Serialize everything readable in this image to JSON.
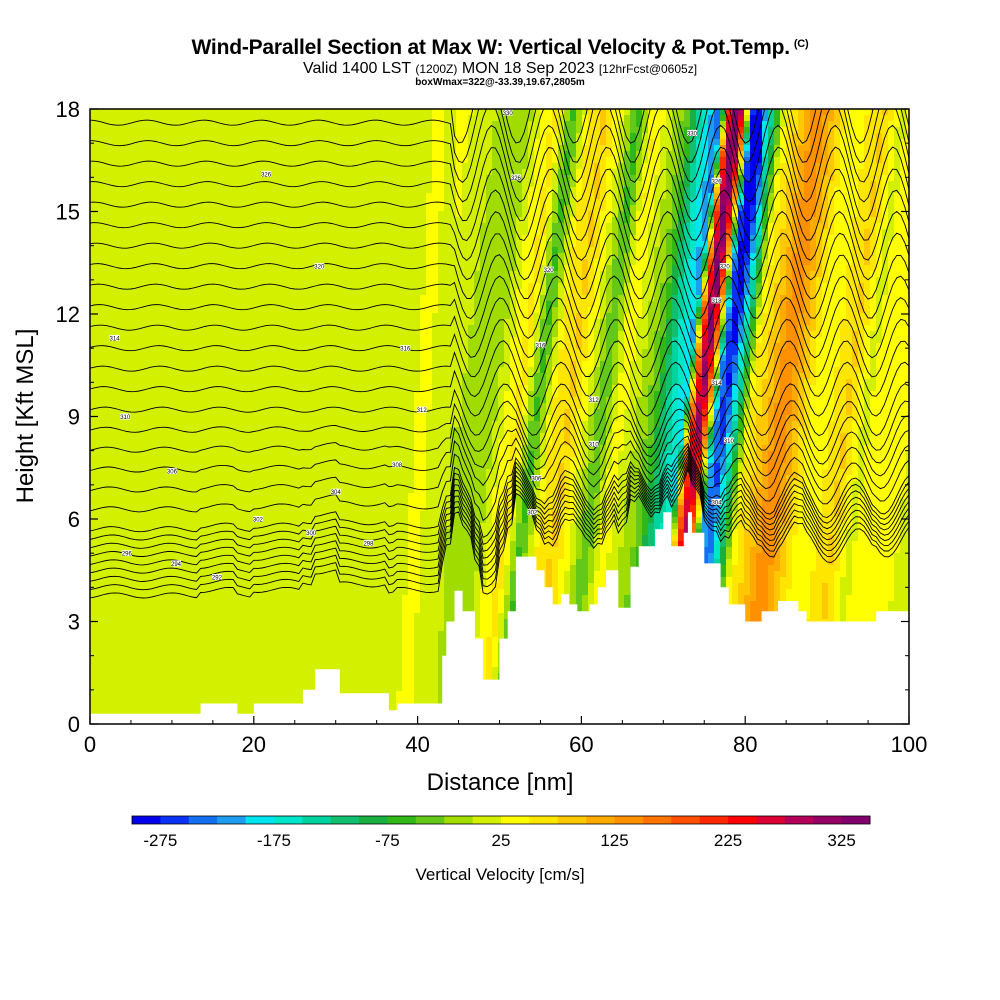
{
  "title": {
    "main": "Wind-Parallel Section at Max W: Vertical Velocity & Pot.Temp.",
    "copyright": "(C)",
    "valid_prefix": "Valid 1400 LST",
    "valid_utc": "(1200Z)",
    "valid_date": "MON 18 Sep 2023",
    "forecast": "[12hrFcst@0605z]",
    "box": "boxWmax=322@-33.39,19.67,2805m"
  },
  "chart_data": {
    "type": "heatmap",
    "xlabel": "Distance [nm]",
    "ylabel": "Height [Kft MSL]",
    "xlim": [
      0,
      100
    ],
    "ylim": [
      0,
      18
    ],
    "x_ticks": [
      "0",
      "20",
      "40",
      "60",
      "80",
      "100"
    ],
    "y_ticks": [
      "0",
      "3",
      "6",
      "9",
      "12",
      "15",
      "18"
    ],
    "field": "Vertical Velocity",
    "contour_field": "Potential Temperature",
    "colorbar": {
      "title": "Vertical Velocity [cm/s]",
      "tick_labels": [
        "-275",
        "-175",
        "-75",
        "25",
        "125",
        "225",
        "325"
      ],
      "tick_values": [
        -275,
        -175,
        -75,
        25,
        125,
        225,
        325
      ],
      "levels": [
        -300,
        -275,
        -250,
        -225,
        -200,
        -175,
        -150,
        -125,
        -100,
        -75,
        -50,
        -25,
        0,
        25,
        50,
        75,
        100,
        125,
        150,
        175,
        200,
        225,
        250,
        275,
        300,
        325,
        350
      ],
      "colors": [
        "#0000ee",
        "#0a32f5",
        "#1470f0",
        "#1e9cf0",
        "#00e6f0",
        "#00e6c8",
        "#00d2a0",
        "#10c070",
        "#18b040",
        "#30b818",
        "#64c818",
        "#a0dc00",
        "#d2f000",
        "#ffff00",
        "#ffe600",
        "#ffc800",
        "#ffaa00",
        "#ff9100",
        "#ff7300",
        "#ff5000",
        "#ff2800",
        "#ff0000",
        "#dc0032",
        "#b4005a",
        "#960064",
        "#82006e"
      ]
    },
    "bands": [
      {
        "x": 0,
        "w": 0
      },
      {
        "x": 3,
        "w": 15
      },
      {
        "x": 8,
        "w": 5
      },
      {
        "x": 11,
        "w": 20
      },
      {
        "x": 14,
        "w": 25
      },
      {
        "x": 18,
        "w": 10
      },
      {
        "x": 22,
        "w": 20
      },
      {
        "x": 27,
        "w": 10
      },
      {
        "x": 31,
        "w": 25
      },
      {
        "x": 36,
        "w": 10
      },
      {
        "x": 40,
        "w": 30
      },
      {
        "x": 43,
        "w": 5
      },
      {
        "x": 47,
        "w": -25
      },
      {
        "x": 49,
        "w": 25
      },
      {
        "x": 51,
        "w": 60
      },
      {
        "x": 53,
        "w": -60
      },
      {
        "x": 55,
        "w": 50
      },
      {
        "x": 57,
        "w": 80
      },
      {
        "x": 59,
        "w": 25
      },
      {
        "x": 61,
        "w": -50
      },
      {
        "x": 63,
        "w": 40
      },
      {
        "x": 65,
        "w": 5
      },
      {
        "x": 67,
        "w": -30
      },
      {
        "x": 69,
        "w": -120
      },
      {
        "x": 71,
        "w": -180
      },
      {
        "x": 72,
        "w": 150
      },
      {
        "x": 73,
        "w": 300
      },
      {
        "x": 74,
        "w": 120
      },
      {
        "x": 75,
        "w": -200
      },
      {
        "x": 76,
        "w": -250
      },
      {
        "x": 77.5,
        "w": -120
      },
      {
        "x": 79,
        "w": 40
      },
      {
        "x": 81,
        "w": 90
      },
      {
        "x": 83,
        "w": 150
      },
      {
        "x": 85,
        "w": 90
      },
      {
        "x": 87,
        "w": 30
      },
      {
        "x": 89,
        "w": 50
      },
      {
        "x": 91,
        "w": 80
      },
      {
        "x": 93,
        "w": 20
      },
      {
        "x": 96,
        "w": 40
      },
      {
        "x": 100,
        "w": 20
      }
    ],
    "terrain": [
      {
        "x": 0,
        "h": 0.3
      },
      {
        "x": 13.5,
        "h": 0.3
      },
      {
        "x": 13.5,
        "h": 0.6
      },
      {
        "x": 18,
        "h": 0.6
      },
      {
        "x": 18,
        "h": 0.3
      },
      {
        "x": 20,
        "h": 0.3
      },
      {
        "x": 20,
        "h": 0.6
      },
      {
        "x": 26,
        "h": 0.6
      },
      {
        "x": 26,
        "h": 1.0
      },
      {
        "x": 27.5,
        "h": 1.0
      },
      {
        "x": 27.5,
        "h": 1.6
      },
      {
        "x": 30.5,
        "h": 1.6
      },
      {
        "x": 30.5,
        "h": 0.9
      },
      {
        "x": 36.5,
        "h": 0.9
      },
      {
        "x": 36.5,
        "h": 0.4
      },
      {
        "x": 37.5,
        "h": 0.4
      },
      {
        "x": 37.5,
        "h": 0.6
      },
      {
        "x": 43,
        "h": 0.6
      },
      {
        "x": 43,
        "h": 2.0
      },
      {
        "x": 43.5,
        "h": 2.0
      },
      {
        "x": 43.5,
        "h": 3.0
      },
      {
        "x": 44.5,
        "h": 3.0
      },
      {
        "x": 44.5,
        "h": 3.9
      },
      {
        "x": 45.5,
        "h": 3.9
      },
      {
        "x": 45.5,
        "h": 3.3
      },
      {
        "x": 47,
        "h": 3.3
      },
      {
        "x": 47,
        "h": 2.5
      },
      {
        "x": 48,
        "h": 2.5
      },
      {
        "x": 48,
        "h": 1.3
      },
      {
        "x": 50,
        "h": 1.3
      },
      {
        "x": 50,
        "h": 2.5
      },
      {
        "x": 51,
        "h": 2.5
      },
      {
        "x": 51,
        "h": 3.3
      },
      {
        "x": 52,
        "h": 3.3
      },
      {
        "x": 52,
        "h": 4.9
      },
      {
        "x": 54.5,
        "h": 4.9
      },
      {
        "x": 54.5,
        "h": 4.5
      },
      {
        "x": 55.5,
        "h": 4.5
      },
      {
        "x": 55.5,
        "h": 4.0
      },
      {
        "x": 56.5,
        "h": 4.0
      },
      {
        "x": 56.5,
        "h": 3.5
      },
      {
        "x": 57.5,
        "h": 3.5
      },
      {
        "x": 57.5,
        "h": 3.8
      },
      {
        "x": 58.5,
        "h": 3.8
      },
      {
        "x": 58.5,
        "h": 3.5
      },
      {
        "x": 59.5,
        "h": 3.5
      },
      {
        "x": 59.5,
        "h": 3.3
      },
      {
        "x": 61,
        "h": 3.3
      },
      {
        "x": 61,
        "h": 3.5
      },
      {
        "x": 62,
        "h": 3.5
      },
      {
        "x": 62,
        "h": 4.0
      },
      {
        "x": 63,
        "h": 4.0
      },
      {
        "x": 63,
        "h": 4.5
      },
      {
        "x": 64.5,
        "h": 4.5
      },
      {
        "x": 64.5,
        "h": 3.4
      },
      {
        "x": 66,
        "h": 3.4
      },
      {
        "x": 66,
        "h": 4.6
      },
      {
        "x": 67,
        "h": 4.6
      },
      {
        "x": 67,
        "h": 5.2
      },
      {
        "x": 69,
        "h": 5.2
      },
      {
        "x": 69,
        "h": 5.7
      },
      {
        "x": 70,
        "h": 5.7
      },
      {
        "x": 70,
        "h": 6.2
      },
      {
        "x": 71,
        "h": 6.2
      },
      {
        "x": 71,
        "h": 5.2
      },
      {
        "x": 72.5,
        "h": 5.2
      },
      {
        "x": 72.5,
        "h": 5.6
      },
      {
        "x": 73,
        "h": 5.6
      },
      {
        "x": 73,
        "h": 6.2
      },
      {
        "x": 73.5,
        "h": 6.2
      },
      {
        "x": 73.5,
        "h": 5.6
      },
      {
        "x": 75,
        "h": 5.6
      },
      {
        "x": 75,
        "h": 4.7
      },
      {
        "x": 77,
        "h": 4.7
      },
      {
        "x": 77,
        "h": 4.0
      },
      {
        "x": 78,
        "h": 4.0
      },
      {
        "x": 78,
        "h": 3.5
      },
      {
        "x": 80,
        "h": 3.5
      },
      {
        "x": 80,
        "h": 3.0
      },
      {
        "x": 82,
        "h": 3.0
      },
      {
        "x": 82,
        "h": 3.3
      },
      {
        "x": 84,
        "h": 3.3
      },
      {
        "x": 84,
        "h": 3.6
      },
      {
        "x": 86.5,
        "h": 3.6
      },
      {
        "x": 86.5,
        "h": 3.3
      },
      {
        "x": 87.5,
        "h": 3.3
      },
      {
        "x": 87.5,
        "h": 3.0
      },
      {
        "x": 96,
        "h": 3.0
      },
      {
        "x": 96,
        "h": 3.3
      },
      {
        "x": 100,
        "h": 3.3
      }
    ],
    "contour_labels": [
      {
        "x": 3,
        "y": 11.3,
        "text": "314"
      },
      {
        "x": 4.3,
        "y": 9.0,
        "text": "310"
      },
      {
        "x": 21.5,
        "y": 16.1,
        "text": "326"
      },
      {
        "x": 28,
        "y": 13.4,
        "text": "320"
      },
      {
        "x": 38.5,
        "y": 11.0,
        "text": "316"
      },
      {
        "x": 40.5,
        "y": 9.2,
        "text": "312"
      },
      {
        "x": 37.5,
        "y": 7.6,
        "text": "308"
      },
      {
        "x": 10,
        "y": 7.4,
        "text": "306"
      },
      {
        "x": 30,
        "y": 6.8,
        "text": "304"
      },
      {
        "x": 20.5,
        "y": 6.0,
        "text": "302"
      },
      {
        "x": 27,
        "y": 5.6,
        "text": "300"
      },
      {
        "x": 34,
        "y": 5.3,
        "text": "298"
      },
      {
        "x": 4.5,
        "y": 5.0,
        "text": "296"
      },
      {
        "x": 10.5,
        "y": 4.7,
        "text": "294"
      },
      {
        "x": 15.5,
        "y": 4.3,
        "text": "292"
      },
      {
        "x": 51,
        "y": 17.9,
        "text": "330"
      },
      {
        "x": 52,
        "y": 16.0,
        "text": "326"
      },
      {
        "x": 56,
        "y": 13.3,
        "text": "320"
      },
      {
        "x": 55,
        "y": 11.1,
        "text": "316"
      },
      {
        "x": 61.5,
        "y": 9.5,
        "text": "312"
      },
      {
        "x": 61.5,
        "y": 8.2,
        "text": "310"
      },
      {
        "x": 54.5,
        "y": 7.2,
        "text": "306"
      },
      {
        "x": 54,
        "y": 6.2,
        "text": "302"
      },
      {
        "x": 73.5,
        "y": 17.3,
        "text": "330"
      },
      {
        "x": 76.5,
        "y": 15.9,
        "text": "326"
      },
      {
        "x": 77.5,
        "y": 13.4,
        "text": "320"
      },
      {
        "x": 76.5,
        "y": 12.4,
        "text": "318"
      },
      {
        "x": 76.5,
        "y": 10.0,
        "text": "314"
      },
      {
        "x": 78,
        "y": 8.3,
        "text": "310"
      },
      {
        "x": 76.5,
        "y": 6.5,
        "text": "304"
      }
    ]
  }
}
